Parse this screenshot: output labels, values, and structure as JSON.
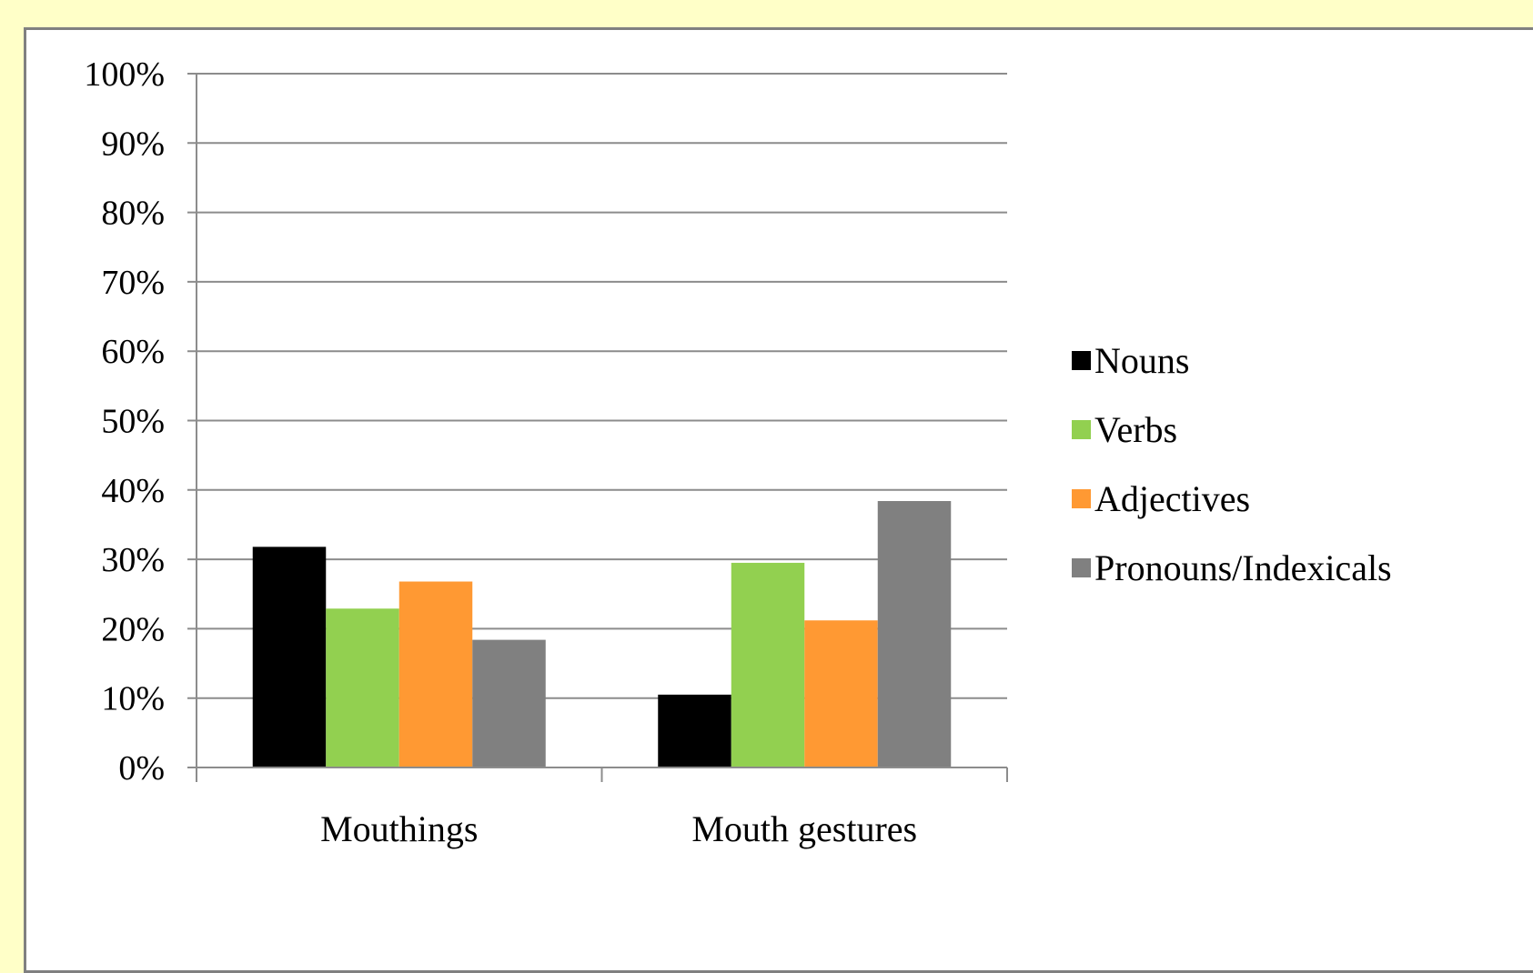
{
  "chart_data": {
    "type": "bar",
    "categories": [
      "Mouthings",
      "Mouth gestures"
    ],
    "series": [
      {
        "name": "Nouns",
        "color": "#000000",
        "values": [
          31.8,
          10.5
        ]
      },
      {
        "name": "Verbs",
        "color": "#92d050",
        "values": [
          22.9,
          29.5
        ]
      },
      {
        "name": "Adjectives",
        "color": "#ff9933",
        "values": [
          26.8,
          21.2
        ]
      },
      {
        "name": "Pronouns/Indexicals",
        "color": "#808080",
        "values": [
          18.4,
          38.4
        ]
      }
    ],
    "ylim": [
      0,
      100
    ],
    "yticks": [
      "0%",
      "10%",
      "20%",
      "30%",
      "40%",
      "50%",
      "60%",
      "70%",
      "80%",
      "90%",
      "100%"
    ],
    "grid": true,
    "legend": "right"
  }
}
